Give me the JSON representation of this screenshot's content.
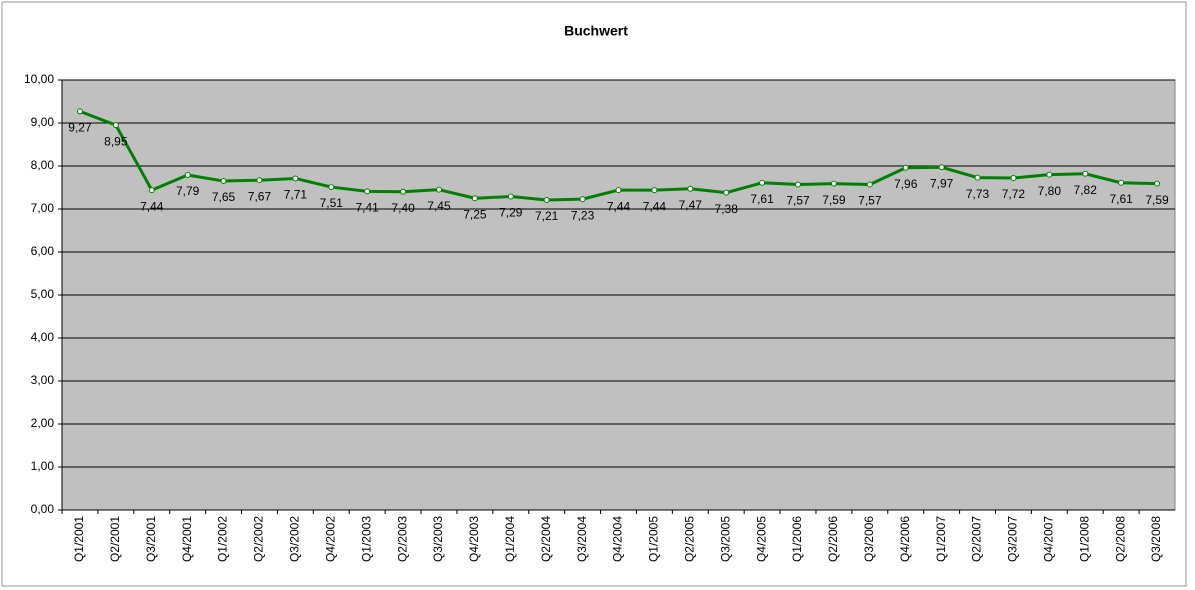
{
  "chart_data": {
    "type": "line",
    "title": "Buchwert",
    "categories": [
      "Q1/2001",
      "Q2/2001",
      "Q3/2001",
      "Q4/2001",
      "Q1/2002",
      "Q2/2002",
      "Q3/2002",
      "Q4/2002",
      "Q1/2003",
      "Q2/2003",
      "Q3/2003",
      "Q4/2003",
      "Q1/2004",
      "Q2/2004",
      "Q3/2004",
      "Q4/2004",
      "Q1/2005",
      "Q2/2005",
      "Q3/2005",
      "Q4/2005",
      "Q1/2006",
      "Q2/2006",
      "Q3/2006",
      "Q4/2006",
      "Q1/2007",
      "Q2/2007",
      "Q3/2007",
      "Q4/2007",
      "Q1/2008",
      "Q2/2008",
      "Q3/2008"
    ],
    "values": [
      9.27,
      8.95,
      7.44,
      7.79,
      7.65,
      7.67,
      7.71,
      7.51,
      7.41,
      7.4,
      7.45,
      7.25,
      7.29,
      7.21,
      7.23,
      7.44,
      7.44,
      7.47,
      7.38,
      7.61,
      7.57,
      7.59,
      7.57,
      7.96,
      7.97,
      7.73,
      7.72,
      7.8,
      7.82,
      7.61,
      7.59
    ],
    "value_labels": [
      "9,27",
      "8,95",
      "7,44",
      "7,79",
      "7,65",
      "7,67",
      "7,71",
      "7,51",
      "7,41",
      "7,40",
      "7,45",
      "7,25",
      "7,29",
      "7,21",
      "7,23",
      "7,44",
      "7,44",
      "7,47",
      "7,38",
      "7,61",
      "7,57",
      "7,59",
      "7,57",
      "7,96",
      "7,97",
      "7,73",
      "7,72",
      "7,80",
      "7,82",
      "7,61",
      "7,59"
    ],
    "color": "#008000",
    "ylim": [
      0,
      10
    ],
    "yticks": [
      {
        "value": 0,
        "label": "0,00"
      },
      {
        "value": 1,
        "label": "1,00"
      },
      {
        "value": 2,
        "label": "2,00"
      },
      {
        "value": 3,
        "label": "3,00"
      },
      {
        "value": 4,
        "label": "4,00"
      },
      {
        "value": 5,
        "label": "5,00"
      },
      {
        "value": 6,
        "label": "6,00"
      },
      {
        "value": 7,
        "label": "7,00"
      },
      {
        "value": 8,
        "label": "8,00"
      },
      {
        "value": 9,
        "label": "9,00"
      },
      {
        "value": 10,
        "label": "10,00"
      }
    ],
    "grid": true
  }
}
